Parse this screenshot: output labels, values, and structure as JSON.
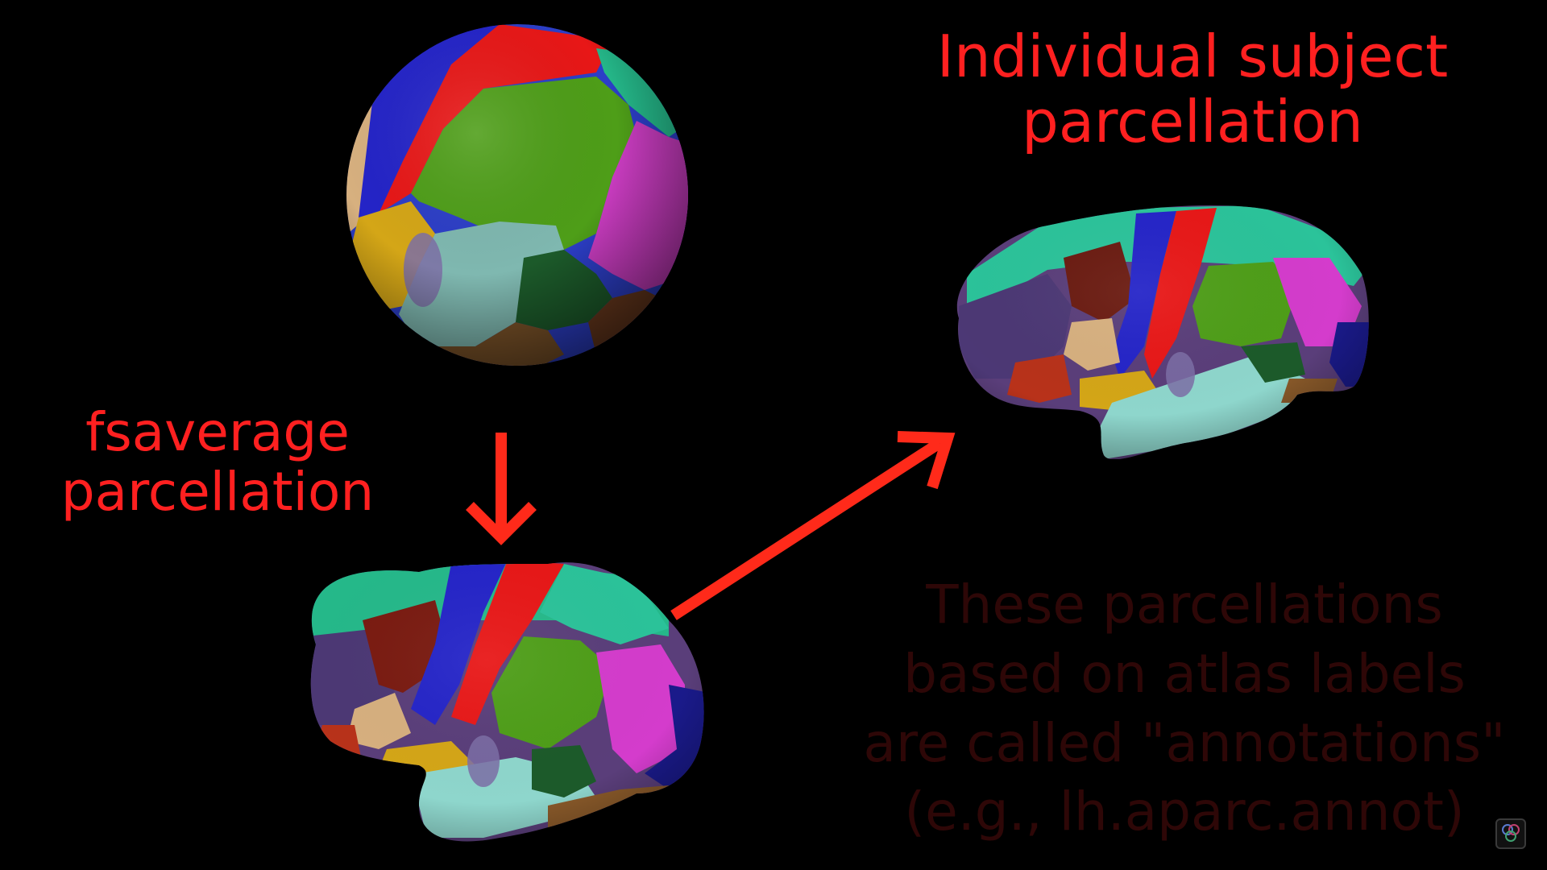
{
  "labels": {
    "subject_line1": "Individual subject",
    "subject_line2": "parcellation",
    "fsaverage_line1": "fsaverage",
    "fsaverage_line2": "parcellation",
    "note_line1": "These parcellations",
    "note_line2": "based on atlas labels",
    "note_line3": "are called \"annotations\"",
    "note_line4": "(e.g., lh.aparc.annot)"
  },
  "colors": {
    "background": "#000000",
    "label_red": "#ff2020",
    "note_dim_red": "#2e0707",
    "arrow_red": "#ff2a1a"
  },
  "icons": {
    "logo": "brain-logo-icon"
  }
}
